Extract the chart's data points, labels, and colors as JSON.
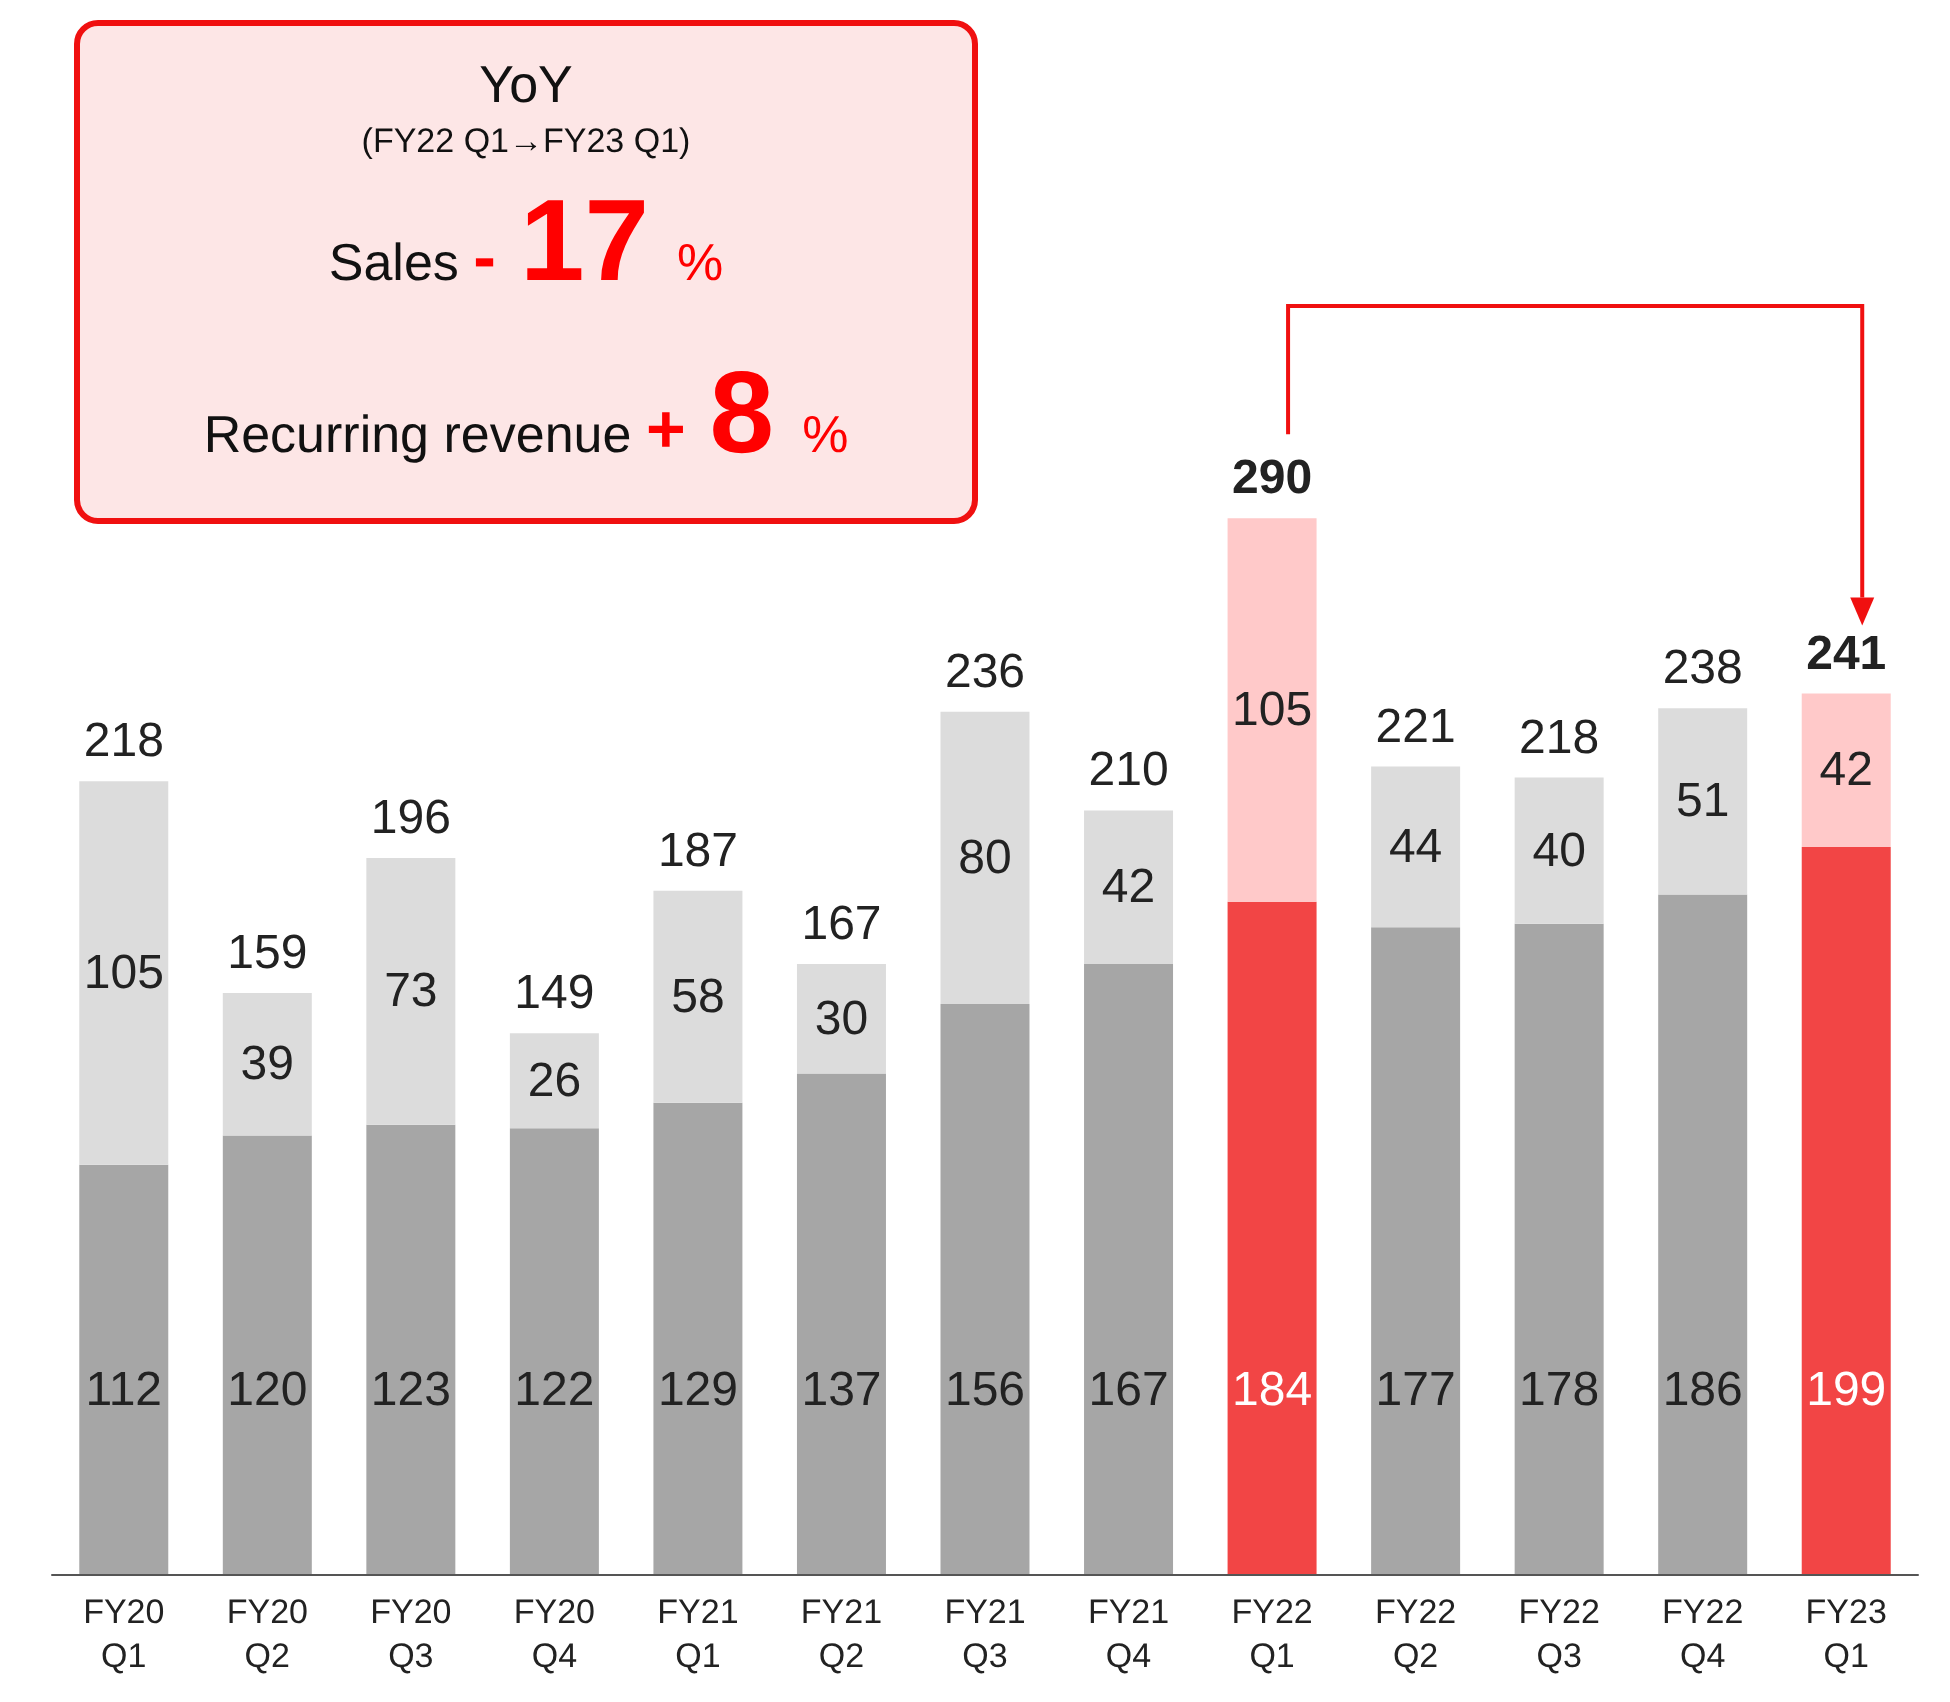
{
  "chart_data": {
    "type": "bar",
    "stacked": true,
    "data_labels": true,
    "categories": [
      "FY20\nQ1",
      "FY20\nQ2",
      "FY20\nQ3",
      "FY20\nQ4",
      "FY21\nQ1",
      "FY21\nQ2",
      "FY21\nQ3",
      "FY21\nQ4",
      "FY22\nQ1",
      "FY22\nQ2",
      "FY22\nQ3",
      "FY22\nQ4",
      "FY23\nQ1"
    ],
    "series": [
      {
        "values": [
          112,
          120,
          123,
          122,
          129,
          137,
          156,
          167,
          184,
          177,
          178,
          186,
          199
        ],
        "colors": [
          "#a6a6a6",
          "#a6a6a6",
          "#a6a6a6",
          "#a6a6a6",
          "#a6a6a6",
          "#a6a6a6",
          "#a6a6a6",
          "#a6a6a6",
          "#f24545",
          "#a6a6a6",
          "#a6a6a6",
          "#a6a6a6",
          "#f24545"
        ]
      },
      {
        "values": [
          105,
          39,
          73,
          26,
          58,
          30,
          80,
          42,
          105,
          44,
          40,
          51,
          42
        ],
        "colors": [
          "#dcdcdc",
          "#dcdcdc",
          "#dcdcdc",
          "#dcdcdc",
          "#dcdcdc",
          "#dcdcdc",
          "#dcdcdc",
          "#dcdcdc",
          "#ffc9c9",
          "#dcdcdc",
          "#dcdcdc",
          "#dcdcdc",
          "#ffc9c9"
        ]
      }
    ],
    "totals": [
      "218",
      "159",
      "196",
      "149",
      "187",
      "167",
      "236",
      "210",
      "290",
      "221",
      "218",
      "238",
      "241"
    ],
    "annotations": [
      "YoY",
      "(FY22 Q1→FY23 Q1)",
      "Sales - 17 %",
      "Recurring revenue + 8 %"
    ]
  }
}
